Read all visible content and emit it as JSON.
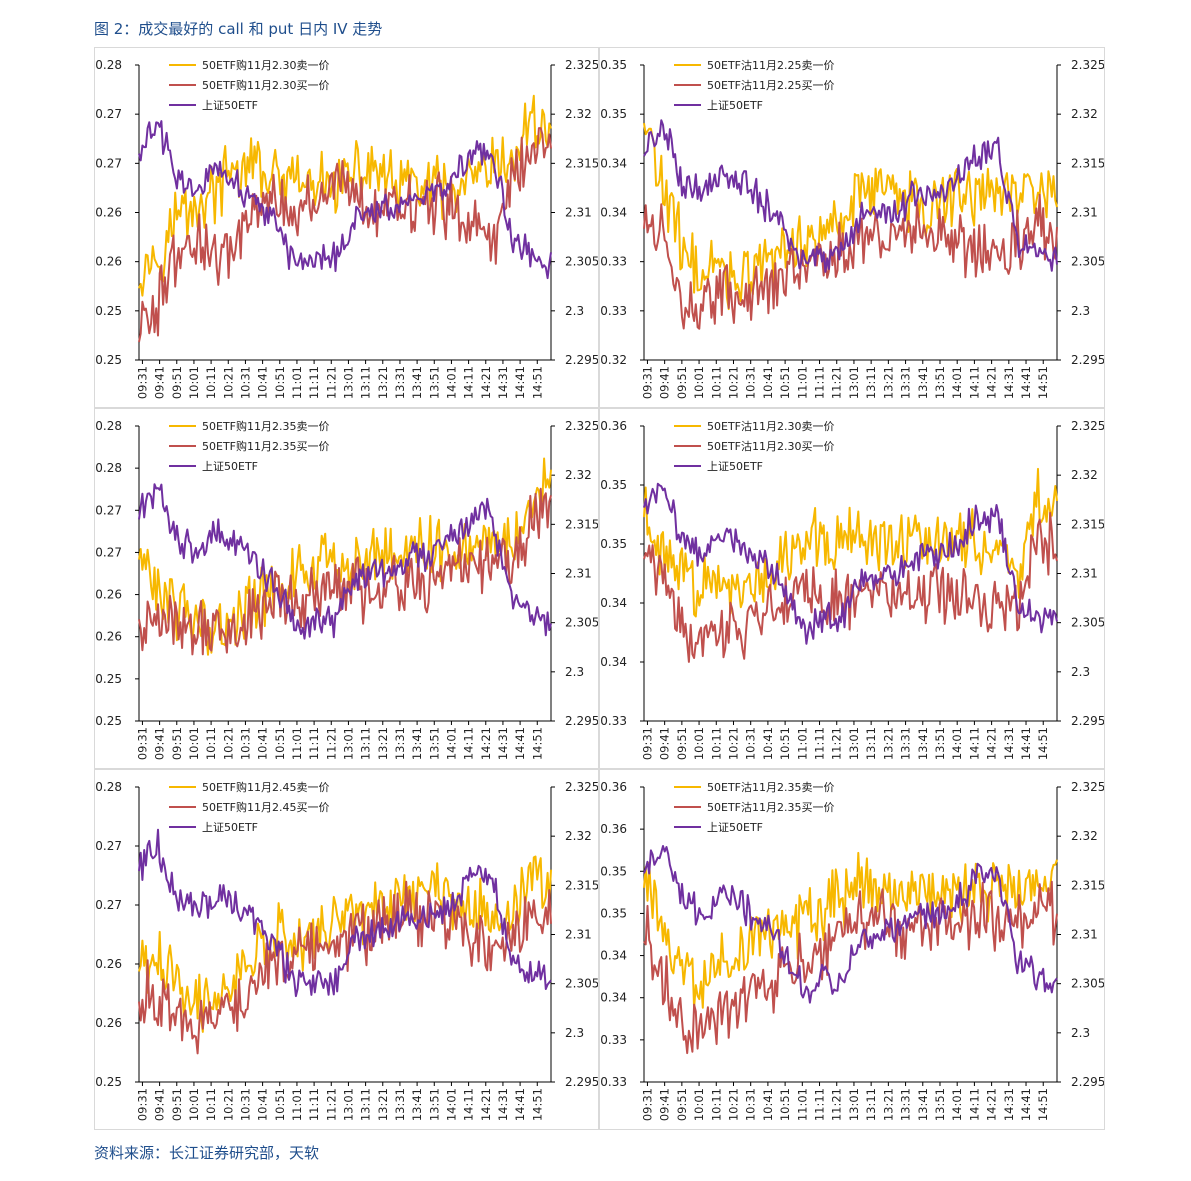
{
  "title": "图 2：成交最好的 call 和 put 日内 IV 走势",
  "source": "资料来源：长江证券研究部，天软",
  "colors": {
    "sell": "#f7b800",
    "buy": "#c0504d",
    "index": "#7030a0",
    "axis": "#000000"
  },
  "chart_data": [
    {
      "type": "line",
      "panel": "top-left",
      "legend": [
        "50ETF购11月2.30卖一价",
        "50ETF购11月2.30买一价",
        "上证50ETF"
      ],
      "x_ticks": [
        "09:31",
        "09:41",
        "09:51",
        "10:01",
        "10:11",
        "10:21",
        "10:31",
        "10:41",
        "10:51",
        "11:01",
        "11:11",
        "11:21",
        "13:01",
        "13:11",
        "13:21",
        "13:31",
        "13:41",
        "13:51",
        "14:01",
        "14:11",
        "14:21",
        "14:31",
        "14:41",
        "14:51"
      ],
      "y_left_ticks": [
        "0.25",
        "0.25",
        "0.26",
        "0.26",
        "0.27",
        "0.27",
        "0.28"
      ],
      "y_left_lim": [
        0.25,
        0.28
      ],
      "y_right_ticks": [
        "2.295",
        "2.3",
        "2.305",
        "2.31",
        "2.315",
        "2.32",
        "2.325"
      ],
      "y_right_lim": [
        2.295,
        2.325
      ],
      "shape": {
        "sell": [
          0.32,
          0.36,
          0.5,
          0.52,
          0.58,
          0.64,
          0.66,
          0.6,
          0.6,
          0.58,
          0.6,
          0.62,
          0.66,
          0.58,
          0.6,
          0.58,
          0.56,
          0.6,
          0.64,
          0.66,
          0.82,
          0.78
        ],
        "buy": [
          0.12,
          0.18,
          0.38,
          0.42,
          0.3,
          0.42,
          0.52,
          0.56,
          0.5,
          0.56,
          0.6,
          0.55,
          0.52,
          0.5,
          0.5,
          0.54,
          0.5,
          0.48,
          0.4,
          0.62,
          0.7,
          0.68
        ],
        "index": [
          0.72,
          0.8,
          0.6,
          0.58,
          0.64,
          0.6,
          0.54,
          0.46,
          0.32,
          0.34,
          0.34,
          0.48,
          0.5,
          0.52,
          0.56,
          0.56,
          0.62,
          0.7,
          0.7,
          0.4,
          0.36,
          0.33
        ]
      }
    },
    {
      "type": "line",
      "panel": "top-right",
      "legend": [
        "50ETF沽11月2.25卖一价",
        "50ETF沽11月2.25买一价",
        "上证50ETF"
      ],
      "x_ticks": [
        "09:31",
        "09:41",
        "09:51",
        "10:01",
        "10:11",
        "10:21",
        "10:31",
        "10:41",
        "10:51",
        "11:01",
        "11:11",
        "11:21",
        "13:01",
        "13:11",
        "13:21",
        "13:31",
        "13:41",
        "13:51",
        "14:01",
        "14:11",
        "14:21",
        "14:31",
        "14:41",
        "14:51"
      ],
      "y_left_ticks": [
        "0.32",
        "0.33",
        "0.33",
        "0.34",
        "0.34",
        "0.35",
        "0.35"
      ],
      "y_left_lim": [
        0.32,
        0.35
      ],
      "y_right_ticks": [
        "2.295",
        "2.3",
        "2.305",
        "2.31",
        "2.315",
        "2.32",
        "2.325"
      ],
      "y_right_lim": [
        2.295,
        2.325
      ],
      "shape": {
        "sell": [
          0.8,
          0.58,
          0.36,
          0.3,
          0.3,
          0.28,
          0.32,
          0.36,
          0.4,
          0.42,
          0.5,
          0.58,
          0.6,
          0.54,
          0.54,
          0.52,
          0.58,
          0.56,
          0.58,
          0.56,
          0.6,
          0.5
        ],
        "buy": [
          0.52,
          0.4,
          0.22,
          0.18,
          0.24,
          0.22,
          0.24,
          0.28,
          0.3,
          0.32,
          0.38,
          0.4,
          0.42,
          0.42,
          0.44,
          0.44,
          0.42,
          0.36,
          0.38,
          0.4,
          0.48,
          0.4
        ],
        "index": [
          0.72,
          0.8,
          0.6,
          0.58,
          0.64,
          0.6,
          0.54,
          0.46,
          0.32,
          0.34,
          0.34,
          0.48,
          0.5,
          0.52,
          0.56,
          0.56,
          0.62,
          0.7,
          0.7,
          0.4,
          0.36,
          0.33
        ]
      }
    },
    {
      "type": "line",
      "panel": "middle-left",
      "legend": [
        "50ETF购11月2.35卖一价",
        "50ETF购11月2.35买一价",
        "上证50ETF"
      ],
      "x_ticks": [
        "09:31",
        "09:41",
        "09:51",
        "10:01",
        "10:11",
        "10:21",
        "10:31",
        "10:41",
        "10:51",
        "11:01",
        "11:11",
        "11:21",
        "13:01",
        "13:11",
        "13:21",
        "13:31",
        "13:41",
        "13:51",
        "14:01",
        "14:11",
        "14:21",
        "14:31",
        "14:41",
        "14:51"
      ],
      "y_left_ticks": [
        "0.25",
        "0.25",
        "0.26",
        "0.26",
        "0.27",
        "0.27",
        "0.28",
        "0.28"
      ],
      "y_left_lim": [
        0.25,
        0.28
      ],
      "y_right_ticks": [
        "2.295",
        "2.3",
        "2.305",
        "2.31",
        "2.315",
        "2.32",
        "2.325"
      ],
      "y_right_lim": [
        2.295,
        2.325
      ],
      "shape": {
        "sell": [
          0.56,
          0.42,
          0.38,
          0.36,
          0.32,
          0.34,
          0.4,
          0.48,
          0.5,
          0.52,
          0.54,
          0.54,
          0.56,
          0.58,
          0.58,
          0.6,
          0.6,
          0.58,
          0.62,
          0.62,
          0.7,
          0.82
        ],
        "buy": [
          0.34,
          0.36,
          0.34,
          0.32,
          0.3,
          0.3,
          0.36,
          0.44,
          0.42,
          0.44,
          0.46,
          0.44,
          0.46,
          0.48,
          0.46,
          0.48,
          0.52,
          0.5,
          0.56,
          0.58,
          0.66,
          0.7
        ],
        "index": [
          0.72,
          0.8,
          0.6,
          0.58,
          0.64,
          0.6,
          0.54,
          0.46,
          0.32,
          0.34,
          0.34,
          0.48,
          0.5,
          0.52,
          0.56,
          0.56,
          0.62,
          0.7,
          0.7,
          0.4,
          0.36,
          0.33
        ]
      }
    },
    {
      "type": "line",
      "panel": "middle-right",
      "legend": [
        "50ETF沽11月2.30卖一价",
        "50ETF沽11月2.30买一价",
        "上证50ETF"
      ],
      "x_ticks": [
        "09:31",
        "09:41",
        "09:51",
        "10:01",
        "10:11",
        "10:21",
        "10:31",
        "10:41",
        "10:51",
        "11:01",
        "11:11",
        "11:21",
        "13:01",
        "13:11",
        "13:21",
        "13:31",
        "13:41",
        "13:51",
        "14:01",
        "14:11",
        "14:21",
        "14:31",
        "14:41",
        "14:51"
      ],
      "y_left_ticks": [
        "0.33",
        "0.34",
        "0.34",
        "0.35",
        "0.35",
        "0.36"
      ],
      "y_left_lim": [
        0.33,
        0.36
      ],
      "y_right_ticks": [
        "2.295",
        "2.3",
        "2.305",
        "2.31",
        "2.315",
        "2.32",
        "2.325"
      ],
      "y_right_lim": [
        2.295,
        2.325
      ],
      "shape": {
        "sell": [
          0.72,
          0.56,
          0.48,
          0.46,
          0.5,
          0.46,
          0.5,
          0.56,
          0.6,
          0.62,
          0.64,
          0.62,
          0.62,
          0.6,
          0.6,
          0.58,
          0.64,
          0.6,
          0.58,
          0.5,
          0.76,
          0.7
        ],
        "buy": [
          0.56,
          0.44,
          0.3,
          0.28,
          0.3,
          0.32,
          0.36,
          0.42,
          0.44,
          0.4,
          0.42,
          0.4,
          0.42,
          0.44,
          0.42,
          0.44,
          0.42,
          0.4,
          0.4,
          0.38,
          0.66,
          0.56
        ],
        "index": [
          0.72,
          0.8,
          0.6,
          0.58,
          0.64,
          0.6,
          0.54,
          0.46,
          0.32,
          0.34,
          0.34,
          0.48,
          0.5,
          0.52,
          0.56,
          0.56,
          0.62,
          0.7,
          0.7,
          0.4,
          0.36,
          0.33
        ]
      }
    },
    {
      "type": "line",
      "panel": "bottom-left",
      "legend": [
        "50ETF购11月2.45卖一价",
        "50ETF购11月2.45买一价",
        "上证50ETF"
      ],
      "x_ticks": [
        "09:31",
        "09:41",
        "09:51",
        "10:01",
        "10:11",
        "10:21",
        "10:31",
        "10:41",
        "10:51",
        "11:01",
        "11:11",
        "11:21",
        "13:01",
        "13:11",
        "13:21",
        "13:31",
        "13:41",
        "13:51",
        "14:01",
        "14:11",
        "14:21",
        "14:31",
        "14:41",
        "14:51"
      ],
      "y_left_ticks": [
        "0.25",
        "0.26",
        "0.26",
        "0.27",
        "0.27",
        "0.28"
      ],
      "y_left_lim": [
        0.25,
        0.28
      ],
      "y_right_ticks": [
        "2.295",
        "2.3",
        "2.305",
        "2.31",
        "2.315",
        "2.32",
        "2.325"
      ],
      "y_right_lim": [
        2.295,
        2.325
      ],
      "shape": {
        "sell": [
          0.42,
          0.4,
          0.34,
          0.28,
          0.3,
          0.36,
          0.44,
          0.48,
          0.5,
          0.5,
          0.54,
          0.56,
          0.6,
          0.62,
          0.64,
          0.66,
          0.62,
          0.6,
          0.56,
          0.58,
          0.7,
          0.66
        ],
        "buy": [
          0.3,
          0.28,
          0.22,
          0.18,
          0.22,
          0.28,
          0.38,
          0.42,
          0.44,
          0.46,
          0.48,
          0.5,
          0.52,
          0.56,
          0.58,
          0.56,
          0.52,
          0.5,
          0.46,
          0.48,
          0.6,
          0.54
        ],
        "index": [
          0.72,
          0.8,
          0.6,
          0.58,
          0.64,
          0.6,
          0.54,
          0.46,
          0.32,
          0.34,
          0.34,
          0.48,
          0.5,
          0.52,
          0.56,
          0.56,
          0.62,
          0.7,
          0.7,
          0.4,
          0.36,
          0.33
        ]
      }
    },
    {
      "type": "line",
      "panel": "bottom-right",
      "legend": [
        "50ETF沽11月2.35卖一价",
        "50ETF沽11月2.35买一价",
        "上证50ETF"
      ],
      "x_ticks": [
        "09:31",
        "09:41",
        "09:51",
        "10:01",
        "10:11",
        "10:21",
        "10:31",
        "10:41",
        "10:51",
        "11:01",
        "11:11",
        "11:21",
        "13:01",
        "13:11",
        "13:21",
        "13:31",
        "13:41",
        "13:51",
        "14:01",
        "14:11",
        "14:21",
        "14:31",
        "14:41",
        "14:51"
      ],
      "y_left_ticks": [
        "0.33",
        "0.33",
        "0.34",
        "0.34",
        "0.35",
        "0.35",
        "0.36",
        "0.36"
      ],
      "y_left_lim": [
        0.33,
        0.36
      ],
      "y_right_ticks": [
        "2.295",
        "2.3",
        "2.305",
        "2.31",
        "2.315",
        "2.32",
        "2.325"
      ],
      "y_right_lim": [
        2.295,
        2.325
      ],
      "shape": {
        "sell": [
          0.72,
          0.52,
          0.4,
          0.34,
          0.4,
          0.44,
          0.48,
          0.52,
          0.54,
          0.58,
          0.62,
          0.66,
          0.66,
          0.64,
          0.66,
          0.64,
          0.64,
          0.66,
          0.66,
          0.62,
          0.7,
          0.68
        ],
        "buy": [
          0.52,
          0.36,
          0.22,
          0.16,
          0.22,
          0.28,
          0.34,
          0.36,
          0.4,
          0.44,
          0.5,
          0.54,
          0.54,
          0.52,
          0.56,
          0.56,
          0.54,
          0.56,
          0.56,
          0.52,
          0.6,
          0.56
        ],
        "index": [
          0.72,
          0.8,
          0.6,
          0.58,
          0.64,
          0.6,
          0.54,
          0.46,
          0.32,
          0.34,
          0.34,
          0.48,
          0.5,
          0.52,
          0.56,
          0.56,
          0.62,
          0.7,
          0.7,
          0.4,
          0.36,
          0.33
        ]
      }
    }
  ]
}
